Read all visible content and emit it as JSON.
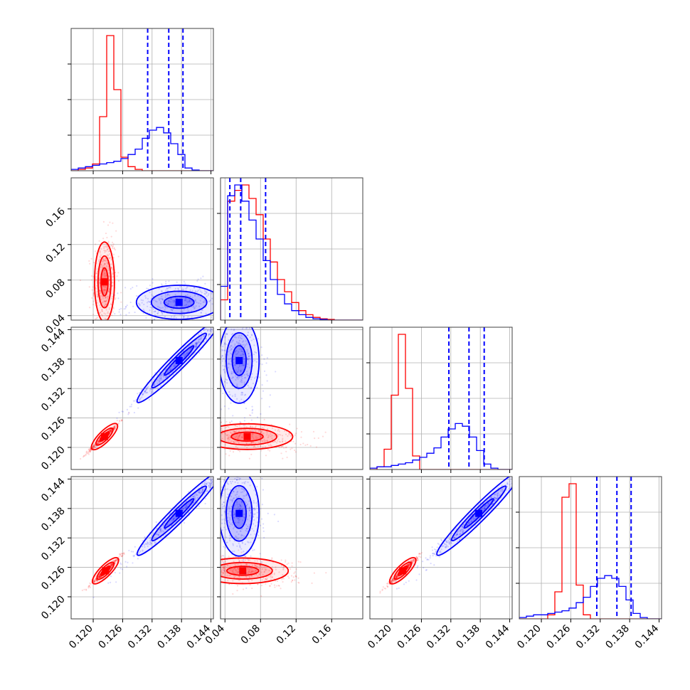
{
  "chart_data": {
    "type": "corner",
    "grid": true,
    "parameters": [
      {
        "range": [
          0.1155,
          0.1445
        ],
        "ticks": [
          0.12,
          0.126,
          0.132,
          0.138,
          0.144
        ],
        "tick_labels": [
          "0.120",
          "0.126",
          "0.132",
          "0.138",
          "0.144"
        ]
      },
      {
        "range": [
          0.035,
          0.195
        ],
        "ticks": [
          0.04,
          0.08,
          0.12,
          0.16
        ],
        "tick_labels": [
          "0.04",
          "0.08",
          "0.12",
          "0.16"
        ]
      },
      {
        "range": [
          0.1155,
          0.1445
        ],
        "ticks": [
          0.12,
          0.126,
          0.132,
          0.138,
          0.144
        ],
        "tick_labels": [
          "0.120",
          "0.126",
          "0.132",
          "0.138",
          "0.144"
        ]
      },
      {
        "range": [
          0.1155,
          0.1445
        ],
        "ticks": [
          0.12,
          0.126,
          0.132,
          0.138,
          0.144
        ],
        "tick_labels": [
          "0.120",
          "0.126",
          "0.132",
          "0.138",
          "0.144"
        ]
      }
    ],
    "colors": {
      "series_red": "#ff0000",
      "series_blue": "#0000ff"
    },
    "series": [
      {
        "color": "#ff0000",
        "histograms": [
          {
            "param": 0,
            "values": [
              0,
              1,
              2,
              5,
              40,
              100,
              60,
              10,
              3,
              1,
              0,
              0,
              0,
              0,
              0,
              0,
              0,
              0,
              0,
              0
            ]
          },
          {
            "param": 1,
            "values": [
              15,
              88,
              96,
              100,
              90,
              78,
              60,
              43,
              30,
              21,
              13,
              7,
              4,
              2,
              1,
              0.5,
              0,
              0,
              0,
              0
            ]
          },
          {
            "param": 2,
            "values": [
              0,
              2,
              15,
              55,
              100,
              60,
              10,
              0,
              0,
              0,
              0,
              0,
              0,
              0,
              0,
              0,
              0,
              0,
              0,
              0
            ]
          },
          {
            "param": 3,
            "values": [
              0,
              0,
              0,
              0,
              3,
              20,
              90,
              100,
              25,
              3,
              0,
              0,
              0,
              0,
              0,
              0,
              0,
              0,
              0,
              0
            ]
          }
        ],
        "modes": [
          {
            "x_param": 0,
            "y_param": 1,
            "center": [
              0.1223,
              0.078
            ]
          },
          {
            "x_param": 0,
            "y_param": 2,
            "center": [
              0.1223,
              0.1222
            ]
          },
          {
            "x_param": 1,
            "y_param": 2,
            "center": [
              0.065,
              0.1222
            ]
          },
          {
            "x_param": 0,
            "y_param": 3,
            "center": [
              0.1225,
              0.1253
            ]
          },
          {
            "x_param": 1,
            "y_param": 3,
            "center": [
              0.06,
              0.1253
            ]
          },
          {
            "x_param": 2,
            "y_param": 3,
            "center": [
              0.1222,
              0.1253
            ]
          }
        ]
      },
      {
        "color": "#0000ff",
        "histograms": [
          {
            "param": 0,
            "values": [
              1,
              2,
              3,
              4,
              5,
              6,
              7,
              9,
              12,
              16,
              24,
              30,
              32,
              28,
              20,
              12,
              2,
              0.5,
              0,
              0
            ]
          },
          {
            "param": 1,
            "values": [
              25,
              92,
              100,
              88,
              74,
              60,
              44,
              30,
              19,
              12,
              7,
              4,
              2,
              1,
              0.5,
              0,
              0,
              0,
              0,
              0
            ]
          },
          {
            "param": 2,
            "values": [
              1,
              2,
              2,
              3,
              4,
              5,
              7,
              9,
              12,
              16,
              24,
              30,
              34,
              32,
              24,
              14,
              4,
              1,
              0,
              0
            ]
          },
          {
            "param": 3,
            "values": [
              1,
              2,
              3,
              3,
              4,
              5,
              6,
              8,
              12,
              16,
              24,
              30,
              32,
              30,
              24,
              14,
              4,
              1,
              0,
              0
            ]
          }
        ],
        "quantile_lines": [
          {
            "param": 0,
            "values": [
              0.1311,
              0.1354,
              0.1383
            ]
          },
          {
            "param": 1,
            "values": [
              0.0455,
              0.0577,
              0.0857
            ]
          },
          {
            "param": 2,
            "values": [
              0.1316,
              0.1357,
              0.1388
            ]
          },
          {
            "param": 3,
            "values": [
              0.1313,
              0.1354,
              0.1383
            ]
          }
        ],
        "modes": [
          {
            "x_param": 0,
            "y_param": 1,
            "center": [
              0.1375,
              0.055
            ]
          },
          {
            "x_param": 0,
            "y_param": 2,
            "center": [
              0.1375,
              0.1377
            ]
          },
          {
            "x_param": 1,
            "y_param": 2,
            "center": [
              0.056,
              0.1377
            ]
          },
          {
            "x_param": 0,
            "y_param": 3,
            "center": [
              0.1375,
              0.137
            ]
          },
          {
            "x_param": 1,
            "y_param": 3,
            "center": [
              0.056,
              0.137
            ]
          },
          {
            "x_param": 2,
            "y_param": 3,
            "center": [
              0.1377,
              0.137
            ]
          }
        ]
      }
    ]
  }
}
